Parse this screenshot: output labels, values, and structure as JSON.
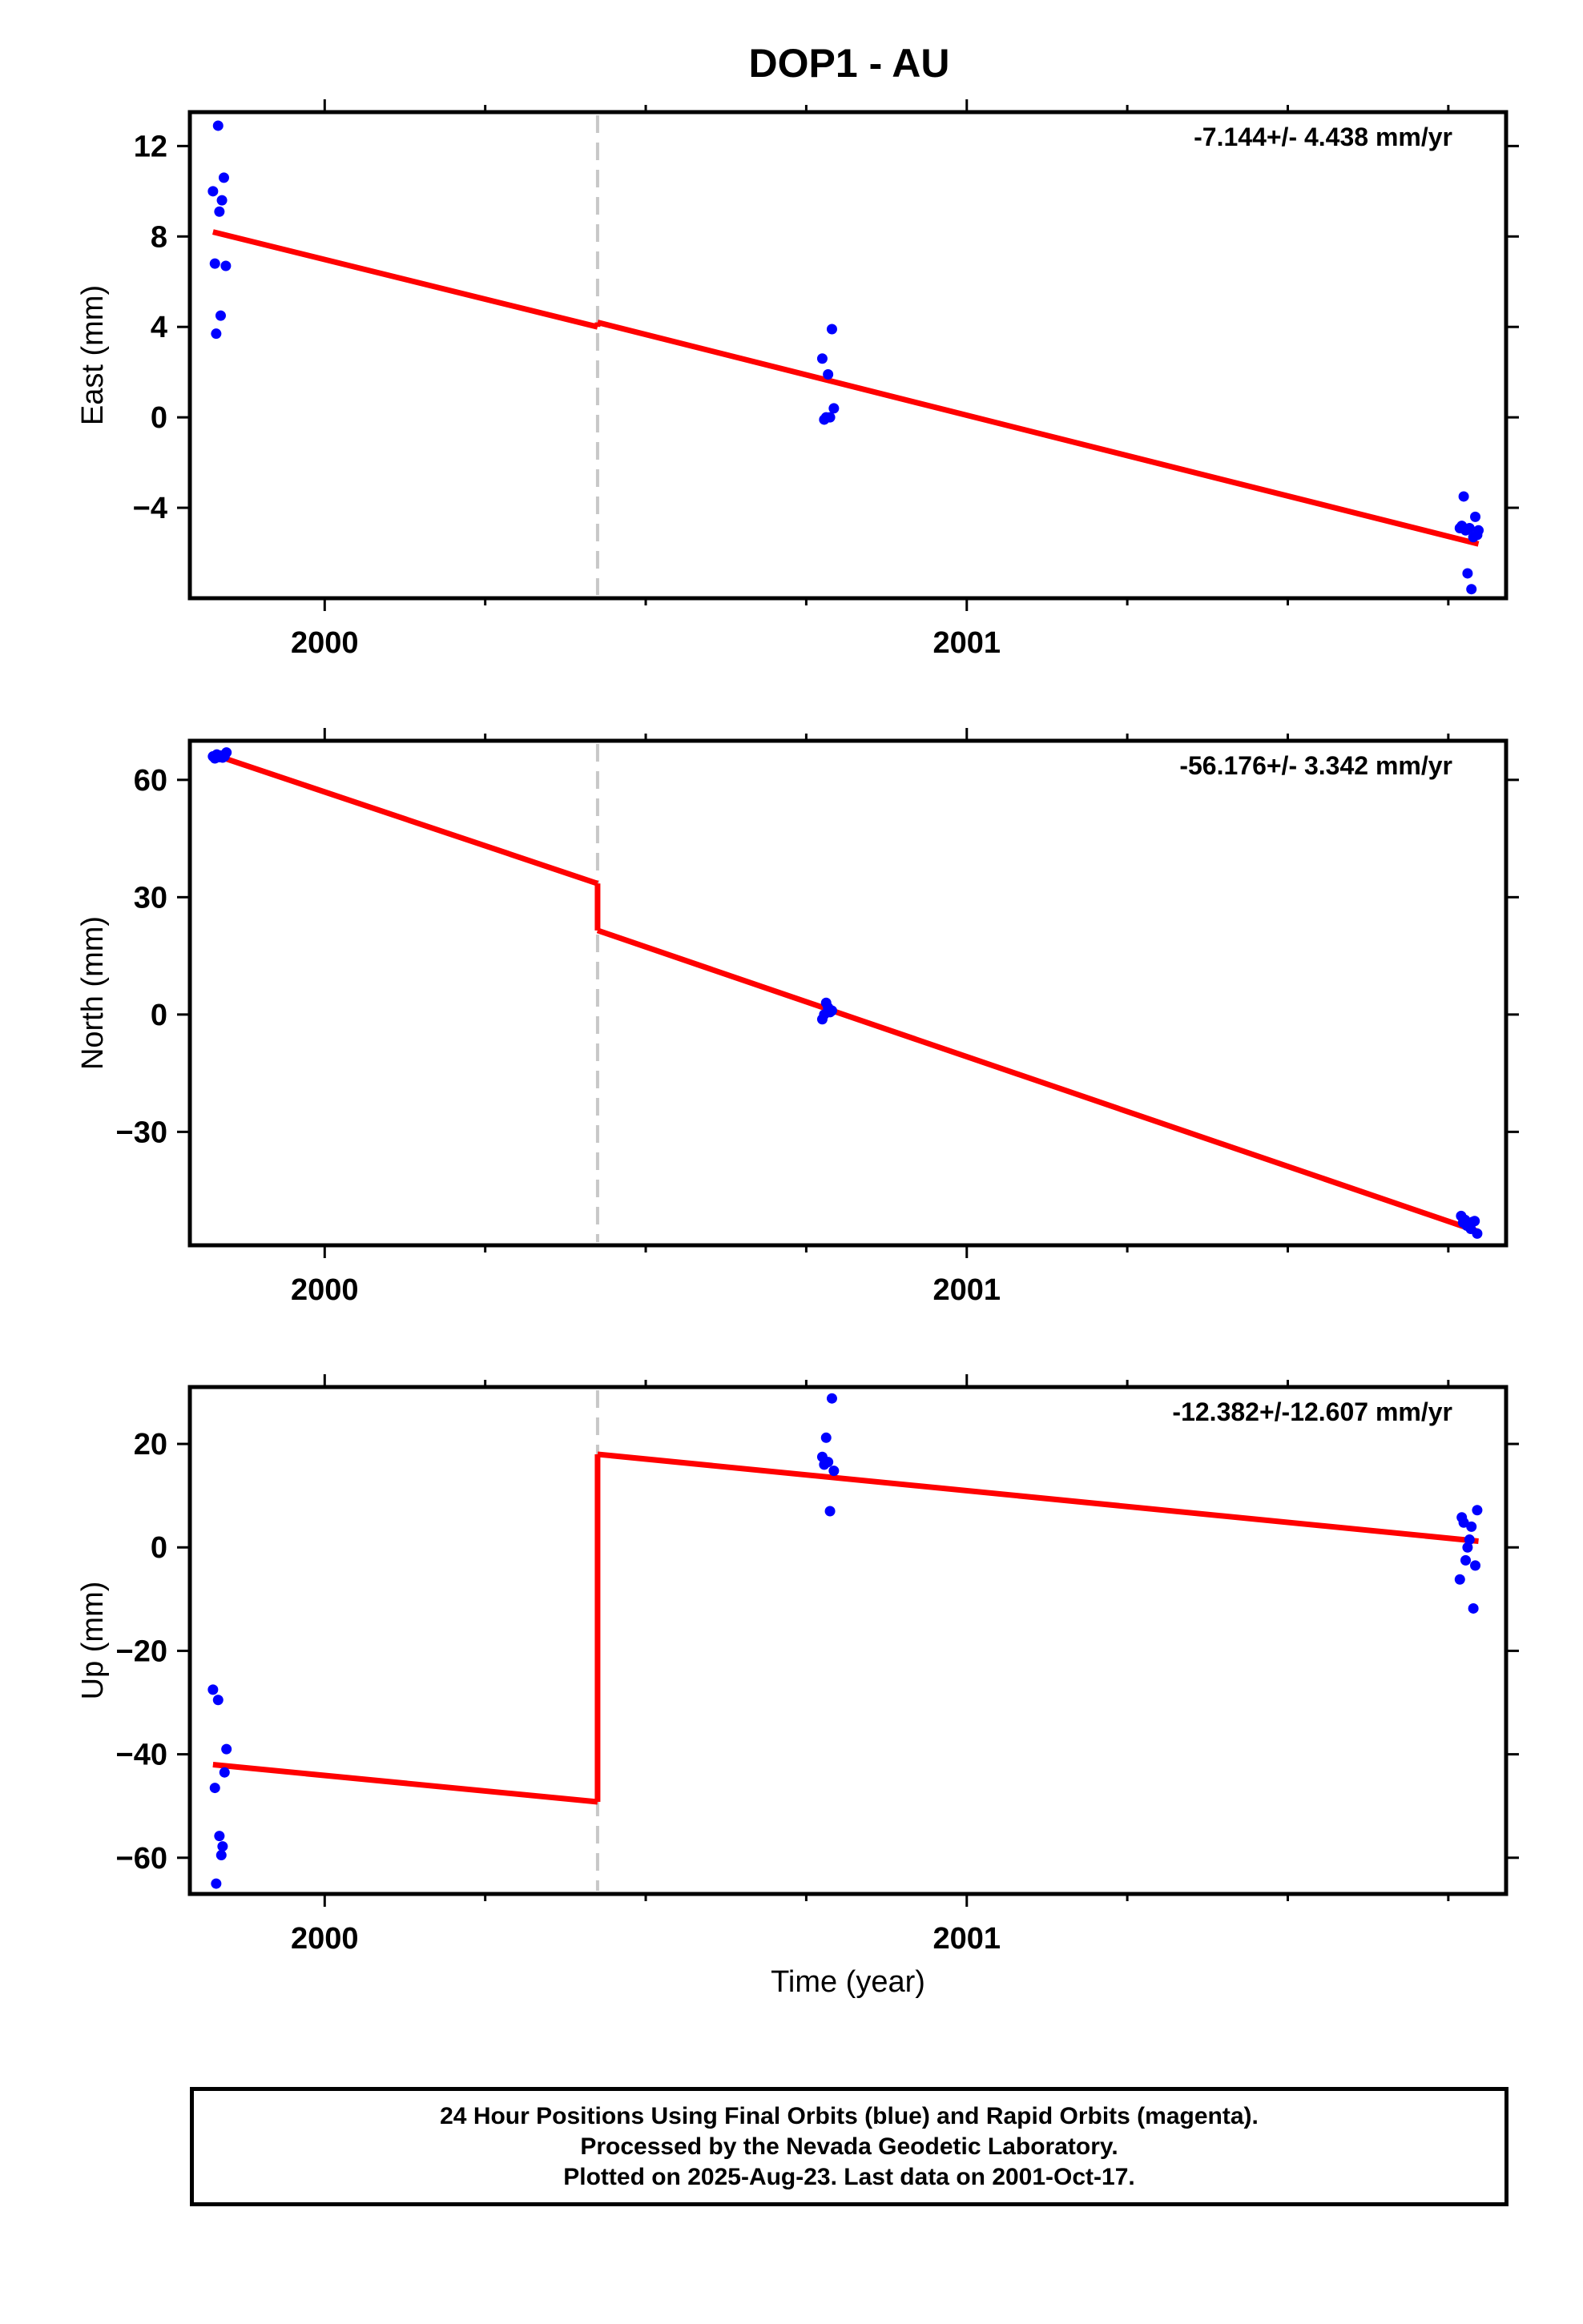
{
  "title": "DOP1 - AU",
  "colors": {
    "points": "#0000ff",
    "model": "#ff0000",
    "offset_line": "#c8c8c8",
    "axes": "#000000"
  },
  "chart_data": [
    {
      "type": "scatter",
      "name": "east",
      "ylabel": "East (mm)",
      "xlabel": "",
      "xlim": [
        1999.79,
        2001.84
      ],
      "ylim": [
        -8,
        13.5
      ],
      "xticks": [
        2000,
        2001
      ],
      "yticks": [
        -4,
        0,
        4,
        8,
        12
      ],
      "ytick_labels": [
        "−4",
        "0",
        "4",
        "8",
        "12"
      ],
      "rate_label": "-7.144+/- 4.438 mm/yr",
      "offset_epoch": 2000.425,
      "points": [
        [
          1999.826,
          10.0
        ],
        [
          1999.829,
          6.8
        ],
        [
          1999.831,
          3.7
        ],
        [
          1999.834,
          12.9
        ],
        [
          1999.836,
          9.1
        ],
        [
          1999.838,
          4.5
        ],
        [
          1999.84,
          9.6
        ],
        [
          1999.843,
          10.6
        ],
        [
          1999.846,
          6.7
        ],
        [
          2000.775,
          2.6
        ],
        [
          2000.778,
          -0.1
        ],
        [
          2000.781,
          0.0
        ],
        [
          2000.784,
          1.9
        ],
        [
          2000.787,
          0.0
        ],
        [
          2000.79,
          3.9
        ],
        [
          2000.793,
          0.4
        ],
        [
          2001.768,
          -4.9
        ],
        [
          2001.771,
          -4.8
        ],
        [
          2001.774,
          -3.5
        ],
        [
          2001.777,
          -5.0
        ],
        [
          2001.78,
          -6.9
        ],
        [
          2001.783,
          -4.9
        ],
        [
          2001.786,
          -7.6
        ],
        [
          2001.789,
          -5.3
        ],
        [
          2001.792,
          -4.4
        ],
        [
          2001.795,
          -5.2
        ],
        [
          2001.797,
          -5.0
        ]
      ],
      "model": [
        [
          [
            1999.826,
            8.2
          ],
          [
            2000.425,
            4.0
          ]
        ],
        [
          [
            2000.425,
            4.2
          ],
          [
            2001.797,
            -5.6
          ]
        ]
      ]
    },
    {
      "type": "scatter",
      "name": "north",
      "ylabel": "North (mm)",
      "xlabel": "",
      "xlim": [
        1999.79,
        2001.84
      ],
      "ylim": [
        -59,
        70
      ],
      "xticks": [
        2000,
        2001
      ],
      "yticks": [
        -30,
        0,
        30,
        60
      ],
      "ytick_labels": [
        "−30",
        "0",
        "30",
        "60"
      ],
      "rate_label": "-56.176+/- 3.342 mm/yr",
      "offset_epoch": 2000.425,
      "points": [
        [
          1999.826,
          66.0
        ],
        [
          1999.829,
          65.5
        ],
        [
          1999.832,
          66.5
        ],
        [
          1999.835,
          65.8
        ],
        [
          1999.838,
          66.2
        ],
        [
          1999.841,
          65.7
        ],
        [
          1999.844,
          66.0
        ],
        [
          1999.847,
          67.0
        ],
        [
          2000.775,
          -1.2
        ],
        [
          2000.778,
          0.0
        ],
        [
          2000.781,
          3.0
        ],
        [
          2000.784,
          1.8
        ],
        [
          2000.787,
          0.6
        ],
        [
          2000.79,
          1.0
        ],
        [
          2001.77,
          -51.5
        ],
        [
          2001.773,
          -53.2
        ],
        [
          2001.776,
          -52.5
        ],
        [
          2001.779,
          -54.0
        ],
        [
          2001.782,
          -53.5
        ],
        [
          2001.785,
          -54.8
        ],
        [
          2001.788,
          -53.0
        ],
        [
          2001.791,
          -52.8
        ],
        [
          2001.795,
          -56.0
        ]
      ],
      "model": [
        [
          [
            1999.826,
            66.5
          ],
          [
            2000.425,
            33.5
          ]
        ],
        [
          [
            2000.425,
            21.5
          ],
          [
            2001.797,
            -55.5
          ]
        ]
      ]
    },
    {
      "type": "scatter",
      "name": "up",
      "ylabel": "Up (mm)",
      "xlabel": "Time (year)",
      "xlim": [
        1999.79,
        2001.84
      ],
      "ylim": [
        -67,
        31
      ],
      "xticks": [
        2000,
        2001
      ],
      "yticks": [
        -60,
        -40,
        -20,
        0,
        20
      ],
      "ytick_labels": [
        "−60",
        "−40",
        "−20",
        "0",
        "20"
      ],
      "rate_label": "-12.382+/-12.607 mm/yr",
      "offset_epoch": 2000.425,
      "points": [
        [
          1999.826,
          -27.5
        ],
        [
          1999.829,
          -46.5
        ],
        [
          1999.831,
          -65.0
        ],
        [
          1999.834,
          -29.5
        ],
        [
          1999.836,
          -55.8
        ],
        [
          1999.839,
          -59.5
        ],
        [
          1999.841,
          -57.8
        ],
        [
          1999.844,
          -43.5
        ],
        [
          1999.847,
          -39.0
        ],
        [
          2000.775,
          17.5
        ],
        [
          2000.778,
          16.0
        ],
        [
          2000.781,
          21.2
        ],
        [
          2000.784,
          16.5
        ],
        [
          2000.787,
          7.0
        ],
        [
          2000.79,
          28.8
        ],
        [
          2000.793,
          14.8
        ],
        [
          2001.768,
          -6.2
        ],
        [
          2001.771,
          5.8
        ],
        [
          2001.774,
          4.8
        ],
        [
          2001.777,
          -2.5
        ],
        [
          2001.78,
          0.0
        ],
        [
          2001.783,
          1.5
        ],
        [
          2001.786,
          4.0
        ],
        [
          2001.789,
          -11.8
        ],
        [
          2001.792,
          -3.5
        ],
        [
          2001.795,
          7.2
        ]
      ],
      "model": [
        [
          [
            1999.826,
            -42.0
          ],
          [
            2000.425,
            -49.2
          ]
        ],
        [
          [
            2000.425,
            18.0
          ],
          [
            2001.797,
            1.2
          ]
        ]
      ]
    }
  ],
  "caption": {
    "line1": "24 Hour Positions Using Final Orbits (blue) and Rapid Orbits (magenta).",
    "line2": "Processed by the Nevada Geodetic Laboratory.",
    "line3": "Plotted on 2025-Aug-23. Last data on 2001-Oct-17."
  }
}
